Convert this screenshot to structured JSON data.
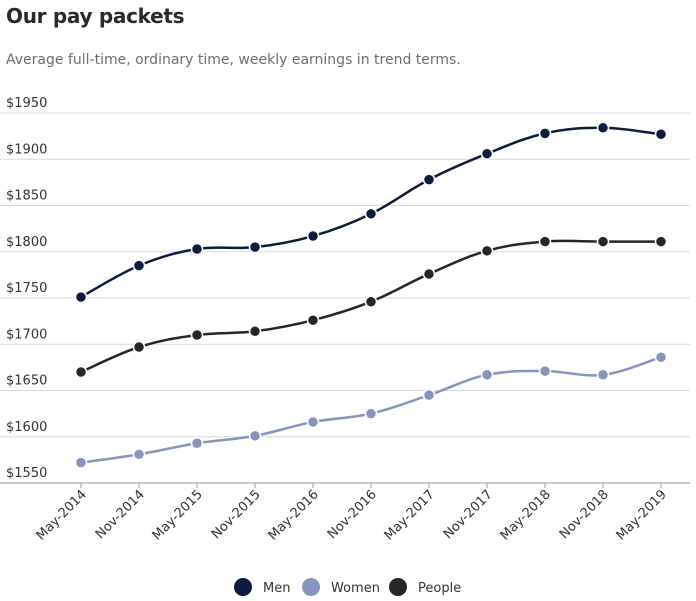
{
  "title": "Our pay packets",
  "subtitle": "Average full-time, ordinary time, weekly earnings in trend terms.",
  "chart_data": {
    "type": "line",
    "title": "Our pay packets",
    "subtitle": "Average full-time, ordinary time, weekly earnings in trend terms.",
    "categories": [
      "May-2014",
      "Nov-2014",
      "May-2015",
      "Nov-2015",
      "May-2016",
      "Nov-2016",
      "May-2017",
      "Nov-2017",
      "May-2018",
      "Nov-2018",
      "May-2019"
    ],
    "yticks": [
      "$1550",
      "$1600",
      "$1650",
      "$1700",
      "$1750",
      "$1800",
      "$1850",
      "$1900",
      "$1950"
    ],
    "ytick_values": [
      1550,
      1600,
      1650,
      1700,
      1750,
      1800,
      1850,
      1900,
      1950
    ],
    "ylim": [
      1550,
      1950
    ],
    "grid": true,
    "legend_position": "bottom-center",
    "series": [
      {
        "name": "Men",
        "color": "#0d1b3e",
        "values": [
          1751,
          1785,
          1803,
          1805,
          1817,
          1841,
          1878,
          1906,
          1928,
          1934,
          1927
        ]
      },
      {
        "name": "Women",
        "color": "#8794bd",
        "values": [
          1572,
          1581,
          1593,
          1601,
          1616,
          1625,
          1645,
          1667,
          1671,
          1667,
          1686
        ]
      },
      {
        "name": "People",
        "color": "#262626",
        "values": [
          1670,
          1697,
          1710,
          1714,
          1726,
          1746,
          1776,
          1801,
          1811,
          1811,
          1811
        ]
      }
    ]
  }
}
